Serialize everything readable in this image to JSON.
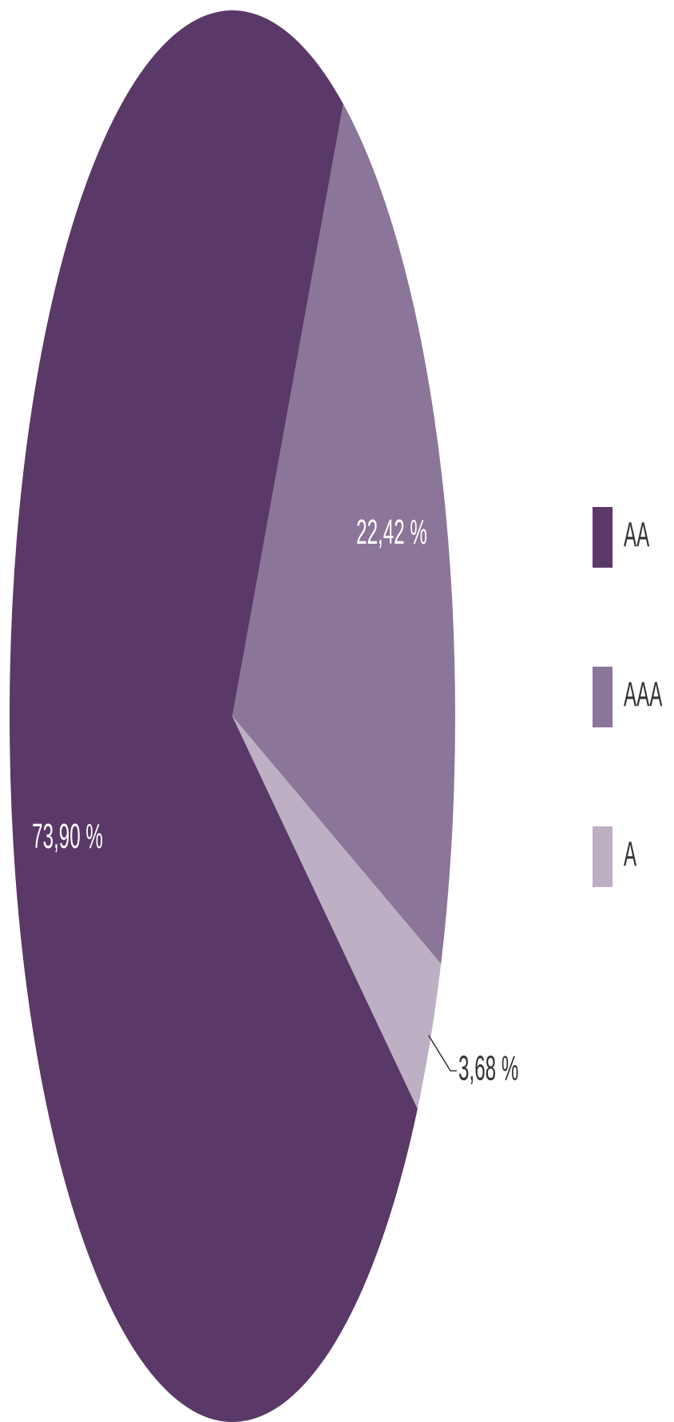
{
  "chart_data": {
    "type": "pie",
    "categories": [
      "AA",
      "AAA",
      "A"
    ],
    "values": [
      73.9,
      22.42,
      3.68
    ],
    "value_labels": [
      "73,90 %",
      "22,42 %",
      "3,68 %"
    ],
    "colors": [
      "#5a3868",
      "#8b7598",
      "#bdafc4"
    ],
    "legend": "right"
  }
}
